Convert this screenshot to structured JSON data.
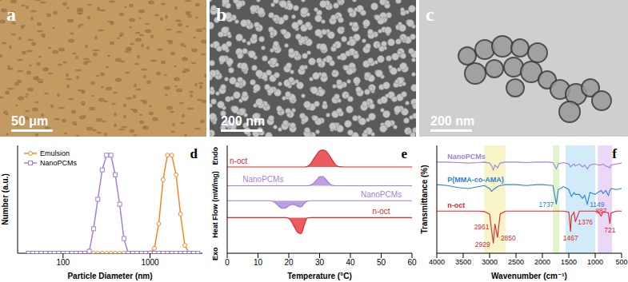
{
  "images": [
    {
      "panel": "a",
      "scale_bar": "50 μm"
    },
    {
      "panel": "b",
      "scale_bar": "200 nm"
    },
    {
      "panel": "c",
      "scale_bar": "200 nm"
    }
  ],
  "chart_data": [
    {
      "type": "line",
      "title": "d",
      "xlabel": "Particle Diameter (nm)",
      "ylabel": "Number (a.u.)",
      "log": "x",
      "xlim": [
        30,
        4000
      ],
      "xticks": [
        100,
        1000
      ],
      "ylim": [
        0,
        1.1
      ],
      "tick_labels": "x",
      "legend": "upper left",
      "grid": false,
      "x": [
        40,
        45,
        50,
        56,
        63,
        71,
        79,
        89,
        100,
        112,
        126,
        141,
        158,
        178,
        200,
        224,
        251,
        282,
        316,
        355,
        398,
        447,
        501,
        562,
        631,
        708,
        794,
        891,
        1000,
        1122,
        1259,
        1413,
        1585,
        1778,
        1995,
        2239,
        2512,
        2818,
        3162,
        3548
      ],
      "series": [
        {
          "name": "Emulsion",
          "color": "#f08a24",
          "marker": "circle",
          "line_style": "solid",
          "values": [
            0,
            0,
            0,
            0,
            0,
            0,
            0,
            0,
            0,
            0,
            0,
            0,
            0,
            0,
            0,
            0,
            0,
            0,
            0,
            0,
            0,
            0,
            0,
            0,
            0,
            0,
            0,
            0,
            0,
            0.05,
            0.3,
            0.75,
            1.0,
            1.0,
            0.8,
            0.4,
            0.08,
            0,
            0,
            0
          ]
        },
        {
          "name": "NanoPCMs",
          "color": "#a47fd8",
          "marker": "square",
          "line_style": "solid",
          "values": [
            0,
            0,
            0,
            0,
            0,
            0,
            0,
            0,
            0,
            0,
            0,
            0,
            0,
            0,
            0.02,
            0.25,
            0.55,
            0.85,
            1.0,
            1.0,
            0.8,
            0.5,
            0.15,
            0,
            0,
            0,
            0,
            0,
            0,
            0,
            0,
            0,
            0,
            0,
            0,
            0,
            0,
            0,
            0,
            0
          ]
        }
      ]
    },
    {
      "type": "area",
      "title": "e",
      "xlabel": "Temperature (°C)",
      "ylabel": [
        "Exo",
        "Heat Flow (mW/mg)",
        "Endo"
      ],
      "xlim": [
        0,
        60
      ],
      "xticks": [
        0,
        10,
        20,
        30,
        40,
        50,
        60
      ],
      "ylim": [
        0,
        11.5
      ],
      "tick_labels": "x",
      "grid": false,
      "x": [
        0,
        5,
        10,
        12,
        14,
        15,
        16,
        17,
        18,
        19,
        20,
        21,
        22,
        23,
        24,
        25,
        26,
        27,
        28,
        29,
        30,
        31,
        32,
        33,
        34,
        35,
        36,
        38,
        40,
        45,
        50,
        55,
        60
      ],
      "series": [
        {
          "name": "n-oct",
          "color": "#e3262b",
          "values": [
            9.2,
            9.2,
            9.2,
            9.2,
            9.2,
            9.2,
            9.2,
            9.2,
            9.2,
            9.2,
            9.2,
            9.2,
            9.2,
            9.2,
            9.2,
            9.2,
            9.25,
            9.5,
            10.0,
            10.5,
            10.9,
            11.0,
            10.9,
            10.5,
            10.0,
            9.5,
            9.25,
            9.2,
            9.2,
            9.2,
            9.2,
            9.2,
            9.2
          ]
        },
        {
          "name": "NanoPCMs",
          "color": "#a47fd8",
          "values": [
            7.2,
            7.2,
            7.2,
            7.2,
            7.2,
            7.2,
            7.2,
            7.2,
            7.2,
            7.2,
            7.2,
            7.2,
            7.2,
            7.2,
            7.2,
            7.2,
            7.2,
            7.25,
            7.45,
            7.8,
            8.15,
            8.2,
            7.9,
            7.5,
            7.25,
            7.2,
            7.2,
            7.2,
            7.2,
            7.2,
            7.2,
            7.2,
            7.2
          ]
        },
        {
          "name": "NanoPCMs",
          "color": "#a47fd8",
          "values": [
            5.6,
            5.6,
            5.6,
            5.6,
            5.6,
            5.5,
            5.25,
            4.95,
            4.8,
            4.85,
            5.05,
            5.2,
            5.15,
            5.0,
            4.95,
            5.3,
            5.55,
            5.6,
            5.6,
            5.6,
            5.6,
            5.6,
            5.6,
            5.6,
            5.6,
            5.6,
            5.6,
            5.6,
            5.6,
            5.6,
            5.6,
            5.6,
            5.6
          ]
        },
        {
          "name": "n-oct",
          "color": "#e3262b",
          "values": [
            3.8,
            3.8,
            3.8,
            3.8,
            3.8,
            3.8,
            3.8,
            3.8,
            3.8,
            3.8,
            3.7,
            3.3,
            2.7,
            2.2,
            2.1,
            3.0,
            3.75,
            3.8,
            3.8,
            3.8,
            3.8,
            3.8,
            3.8,
            3.8,
            3.8,
            3.8,
            3.8,
            3.8,
            3.8,
            3.8,
            3.8,
            3.8,
            3.8
          ]
        }
      ]
    },
    {
      "type": "line",
      "title": "f",
      "xlabel": "Wavenumber (cm⁻¹)",
      "ylabel": "Transmittance (%)",
      "xlim": [
        4000,
        500
      ],
      "xticks": [
        4000,
        3500,
        3000,
        2500,
        2000,
        1500,
        1000,
        500
      ],
      "ylim": [
        0,
        11
      ],
      "tick_labels": "x",
      "grid": false,
      "bands": [
        {
          "x": [
            3100,
            2700
          ],
          "color": "#f3efb0"
        },
        {
          "x": [
            1800,
            1680
          ],
          "color": "#d6efb6"
        },
        {
          "x": [
            1560,
            1000
          ],
          "color": "#bfe3f5"
        },
        {
          "x": [
            950,
            680
          ],
          "color": "#e3c8f2"
        }
      ],
      "x": [
        4000,
        3800,
        3600,
        3400,
        3200,
        3100,
        3000,
        2961,
        2929,
        2900,
        2850,
        2800,
        2700,
        2500,
        2300,
        2100,
        2000,
        1900,
        1800,
        1737,
        1700,
        1600,
        1500,
        1467,
        1450,
        1400,
        1376,
        1300,
        1240,
        1200,
        1149,
        1100,
        1000,
        950,
        887,
        850,
        800,
        750,
        721,
        700,
        600,
        500
      ],
      "series": [
        {
          "name": "NanoPCMs",
          "color": "#a47fd8",
          "values": [
            9.3,
            9.3,
            9.25,
            9.2,
            9.25,
            9.3,
            9.2,
            8.9,
            8.5,
            9.0,
            8.7,
            9.2,
            9.3,
            9.3,
            9.25,
            9.3,
            9.3,
            9.3,
            9.25,
            8.6,
            9.1,
            9.25,
            9.1,
            8.8,
            8.9,
            9.1,
            8.9,
            9.1,
            8.8,
            9.0,
            8.6,
            9.0,
            9.1,
            9.0,
            9.0,
            9.1,
            8.9,
            8.8,
            8.7,
            9.0,
            9.1,
            9.2
          ]
        },
        {
          "name": "P(MMA-co-AMA)",
          "color": "#2f7fd0",
          "peaks": [
            1737,
            1149
          ],
          "values": [
            7.0,
            6.9,
            6.7,
            6.6,
            6.8,
            6.9,
            6.6,
            6.3,
            6.5,
            6.6,
            6.8,
            6.9,
            7.0,
            7.0,
            6.9,
            7.0,
            7.0,
            6.95,
            6.9,
            5.0,
            6.5,
            6.8,
            6.5,
            6.0,
            5.8,
            6.2,
            6.0,
            6.0,
            5.6,
            5.9,
            5.0,
            6.2,
            6.0,
            6.2,
            6.4,
            6.1,
            6.4,
            5.9,
            6.4,
            6.6,
            6.5,
            6.6
          ]
        },
        {
          "name": "n-oct",
          "color": "#e3262b",
          "peaks": [
            2961,
            2929,
            2850,
            1467,
            1376,
            887,
            721
          ],
          "values": [
            4.3,
            4.3,
            4.3,
            4.3,
            4.3,
            4.25,
            4.0,
            2.3,
            1.0,
            3.0,
            1.6,
            4.0,
            4.3,
            4.3,
            4.3,
            4.3,
            4.3,
            4.3,
            4.3,
            4.3,
            4.3,
            4.3,
            4.2,
            2.2,
            3.8,
            4.2,
            3.2,
            4.3,
            4.3,
            4.3,
            4.3,
            4.3,
            4.3,
            4.25,
            3.8,
            4.25,
            4.2,
            4.1,
            3.0,
            4.1,
            4.3,
            4.3
          ]
        }
      ]
    }
  ]
}
